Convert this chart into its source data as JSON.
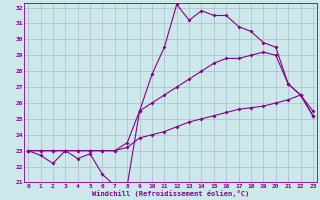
{
  "xlabel": "Windchill (Refroidissement éolien,°C)",
  "bg_color": "#cce8ea",
  "grid_color": "#aabbcc",
  "line_color": "#880088",
  "xmin": 0,
  "xmax": 23,
  "ymin": 21,
  "ymax": 32,
  "x": [
    0,
    1,
    2,
    3,
    4,
    5,
    6,
    7,
    8,
    9,
    10,
    11,
    12,
    13,
    14,
    15,
    16,
    17,
    18,
    19,
    20,
    21,
    22,
    23
  ],
  "line1": [
    23.0,
    22.7,
    22.2,
    23.0,
    22.5,
    22.8,
    21.5,
    20.8,
    20.8,
    25.5,
    27.8,
    29.5,
    32.2,
    31.2,
    31.8,
    31.5,
    31.5,
    30.8,
    30.5,
    29.8,
    29.5,
    27.2,
    26.5,
    25.5
  ],
  "line2": [
    23.0,
    23.0,
    23.0,
    23.0,
    23.0,
    23.0,
    23.0,
    23.0,
    23.5,
    25.5,
    26.0,
    26.5,
    27.0,
    27.5,
    28.0,
    28.5,
    28.8,
    28.8,
    29.0,
    29.2,
    29.0,
    27.2,
    26.5,
    25.2
  ],
  "line3": [
    23.0,
    23.0,
    23.0,
    23.0,
    23.0,
    23.0,
    23.0,
    23.0,
    23.2,
    23.8,
    24.0,
    24.2,
    24.5,
    24.8,
    25.0,
    25.2,
    25.4,
    25.6,
    25.7,
    25.8,
    26.0,
    26.2,
    26.5,
    25.2
  ]
}
